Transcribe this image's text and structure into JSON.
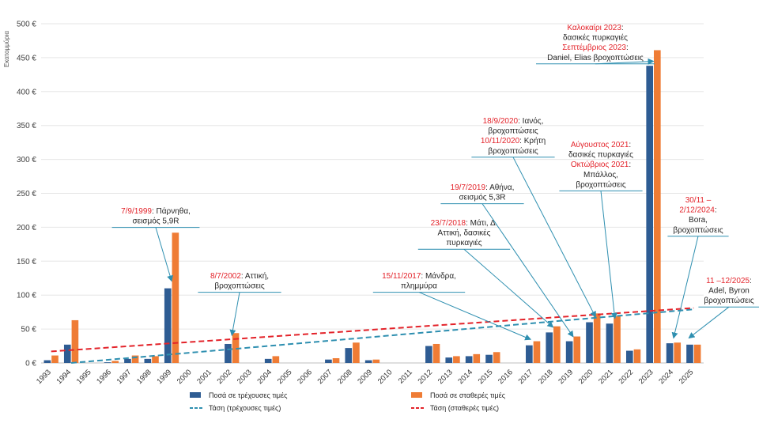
{
  "chart_data": {
    "type": "bar",
    "title": "",
    "ylabel": "Εκατομμύρια",
    "xlabel": "",
    "ylim": [
      0,
      500
    ],
    "y_ticks": [
      0,
      50,
      100,
      150,
      200,
      250,
      300,
      350,
      400,
      450,
      500
    ],
    "y_tick_labels": [
      "0 €",
      "50 €",
      "100 €",
      "150 €",
      "200 €",
      "250 €",
      "300 €",
      "350 €",
      "400 €",
      "450 €",
      "500 €"
    ],
    "categories": [
      "1993",
      "1994",
      "1995",
      "1996",
      "1997",
      "1998",
      "1999",
      "2000",
      "2001",
      "2002",
      "2003",
      "2004",
      "2005",
      "2006",
      "2007",
      "2008",
      "2009",
      "2010",
      "2011",
      "2012",
      "2013",
      "2014",
      "2015",
      "2016",
      "2017",
      "2018",
      "2019",
      "2020",
      "2021",
      "2022",
      "2023",
      "2024",
      "2025"
    ],
    "series": [
      {
        "name": "Ποσά σε τρέχουσες τιμές",
        "color": "#2e5c93",
        "values": [
          4,
          27,
          0,
          1,
          6,
          6,
          110,
          0,
          0,
          28,
          0,
          6,
          0,
          0,
          5,
          22,
          4,
          0,
          0,
          25,
          8,
          10,
          12,
          0,
          26,
          45,
          32,
          60,
          58,
          18,
          438,
          29,
          27
        ]
      },
      {
        "name": "Ποσά σε σταθερές τιμές",
        "color": "#ef7c35",
        "values": [
          11,
          63,
          0,
          3,
          11,
          10,
          192,
          0,
          0,
          44,
          0,
          10,
          0,
          0,
          7,
          30,
          5,
          0,
          0,
          28,
          10,
          13,
          16,
          0,
          32,
          54,
          39,
          73,
          69,
          20,
          461,
          30,
          27
        ]
      }
    ],
    "trends": [
      {
        "name": "Τάση (τρέχουσες τιμές)",
        "color": "#2e8fb0",
        "start": 0,
        "end": 79,
        "from_index": 1,
        "to_index": 32
      },
      {
        "name": "Τάση (σταθερές τιμές)",
        "color": "#e3232a",
        "start": 17,
        "end": 81,
        "from_index": 0,
        "to_index": 32
      }
    ],
    "annotations": [
      {
        "index": 6,
        "lines": [
          [
            {
              "t": "7/9/1999",
              "red": true
            },
            {
              "t": ": Πάρνηθα,"
            }
          ],
          [
            {
              "t": "σεισμός 5,9R"
            }
          ]
        ]
      },
      {
        "index": 9,
        "lines": [
          [
            {
              "t": "8/7/2002",
              "red": true
            },
            {
              "t": ": Αττική,"
            }
          ],
          [
            {
              "t": "βροχοπτώσεις"
            }
          ]
        ]
      },
      {
        "index": 24,
        "lines": [
          [
            {
              "t": "15/11/2017",
              "red": true
            },
            {
              "t": ": Μάνδρα,"
            }
          ],
          [
            {
              "t": "πλημμύρα"
            }
          ]
        ]
      },
      {
        "index": 25,
        "lines": [
          [
            {
              "t": "23/7/2018",
              "red": true
            },
            {
              "t": ": Μάτι, Δ."
            }
          ],
          [
            {
              "t": "Αττική, δασικές"
            }
          ],
          [
            {
              "t": "πυρκαγιές"
            }
          ]
        ]
      },
      {
        "index": 26,
        "lines": [
          [
            {
              "t": "19/7/2019",
              "red": true
            },
            {
              "t": ": Αθήνα,"
            }
          ],
          [
            {
              "t": "σεισμός 5,3R"
            }
          ]
        ]
      },
      {
        "index": 27,
        "lines": [
          [
            {
              "t": "18/9/2020",
              "red": true
            },
            {
              "t": ": Ιανός,"
            }
          ],
          [
            {
              "t": "βροχοπτώσεις"
            }
          ],
          [
            {
              "t": "10/11/2020",
              "red": true
            },
            {
              "t": ": Κρήτη"
            }
          ],
          [
            {
              "t": "βροχοπτώσεις"
            }
          ]
        ]
      },
      {
        "index": 28,
        "lines": [
          [
            {
              "t": "Αύγουστος 2021",
              "red": true
            },
            {
              "t": ":"
            }
          ],
          [
            {
              "t": "δασικές πυρκαγιές"
            }
          ],
          [
            {
              "t": "Οκτώβριος 2021",
              "red": true
            },
            {
              "t": ":"
            }
          ],
          [
            {
              "t": "Μπάλλος,"
            }
          ],
          [
            {
              "t": "βροχοπτώσεις"
            }
          ]
        ]
      },
      {
        "index": 30,
        "lines": [
          [
            {
              "t": "Καλοκαίρι 2023",
              "red": true
            },
            {
              "t": ":"
            }
          ],
          [
            {
              "t": "δασικές πυρκαγιές"
            }
          ],
          [
            {
              "t": "Σεπτέμβριος 2023",
              "red": true
            },
            {
              "t": ":"
            }
          ],
          [
            {
              "t": "Daniel, Elias βροχοπτώσεις"
            }
          ]
        ]
      },
      {
        "index": 31,
        "lines": [
          [
            {
              "t": "30/11 –",
              "red": true
            }
          ],
          [
            {
              "t": "2/12/2024",
              "red": true
            },
            {
              "t": ":"
            }
          ],
          [
            {
              "t": "Bora,"
            }
          ],
          [
            {
              "t": "βροχοπτώσεις"
            }
          ]
        ]
      },
      {
        "index": 32,
        "lines": [
          [
            {
              "t": "11 –12/2025",
              "red": true
            },
            {
              "t": ":"
            }
          ],
          [
            {
              "t": "Adel, Byron"
            }
          ],
          [
            {
              "t": "βροχοπτώσεις"
            }
          ]
        ]
      }
    ],
    "legend": [
      {
        "name": "Ποσά σε τρέχουσες τιμές",
        "kind": "bar",
        "color": "#2e5c93"
      },
      {
        "name": "Ποσά σε σταθερές τιμές",
        "kind": "bar",
        "color": "#ef7c35"
      },
      {
        "name": "Τάση (τρέχουσες τιμές)",
        "kind": "dash",
        "color": "#2e8fb0"
      },
      {
        "name": "Τάση (σταθερές τιμές)",
        "kind": "dash",
        "color": "#e3232a"
      }
    ],
    "legend_position": "bottom",
    "grid": true
  }
}
